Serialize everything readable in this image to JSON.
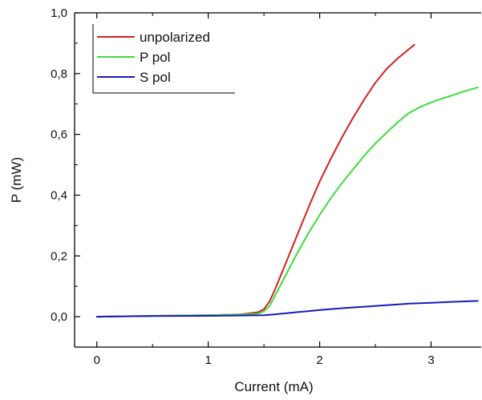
{
  "chart_data": {
    "type": "line",
    "title": "",
    "xlabel": "Current (mA)",
    "ylabel": "P (mW)",
    "xlim": [
      -0.2,
      3.45
    ],
    "ylim": [
      -0.1,
      1.0
    ],
    "x_ticks": [
      0,
      1,
      2,
      3
    ],
    "x_tick_labels": [
      "0",
      "1",
      "2",
      "3"
    ],
    "y_ticks": [
      0.0,
      0.2,
      0.4,
      0.6,
      0.8,
      1.0
    ],
    "y_tick_labels": [
      "0,0",
      "0,2",
      "0,4",
      "0,6",
      "0,8",
      "1,0"
    ],
    "grid": false,
    "legend_position": "top-left",
    "series": [
      {
        "name": "unpolarized",
        "color": "#d42020",
        "x": [
          0,
          0.5,
          1.0,
          1.3,
          1.45,
          1.5,
          1.55,
          1.6,
          1.7,
          1.8,
          1.9,
          2.0,
          2.1,
          2.2,
          2.3,
          2.4,
          2.5,
          2.6,
          2.7,
          2.8,
          2.85
        ],
        "y": [
          0.0,
          0.003,
          0.005,
          0.008,
          0.015,
          0.025,
          0.05,
          0.09,
          0.18,
          0.27,
          0.36,
          0.445,
          0.52,
          0.59,
          0.655,
          0.715,
          0.77,
          0.815,
          0.85,
          0.88,
          0.895
        ]
      },
      {
        "name": "P pol",
        "color": "#3ddc3d",
        "x": [
          0,
          0.5,
          1.0,
          1.3,
          1.45,
          1.5,
          1.55,
          1.6,
          1.7,
          1.8,
          1.9,
          2.0,
          2.1,
          2.2,
          2.3,
          2.4,
          2.5,
          2.6,
          2.7,
          2.8,
          2.9,
          3.0,
          3.1,
          3.2,
          3.3,
          3.42
        ],
        "y": [
          0.0,
          0.003,
          0.005,
          0.007,
          0.01,
          0.018,
          0.035,
          0.07,
          0.14,
          0.21,
          0.275,
          0.335,
          0.39,
          0.44,
          0.485,
          0.53,
          0.57,
          0.605,
          0.64,
          0.67,
          0.69,
          0.705,
          0.718,
          0.73,
          0.742,
          0.755
        ]
      },
      {
        "name": "S pol",
        "color": "#1a1ab8",
        "x": [
          0,
          0.5,
          1.0,
          1.5,
          1.6,
          1.8,
          2.0,
          2.2,
          2.4,
          2.6,
          2.8,
          3.0,
          3.2,
          3.42
        ],
        "y": [
          0.0,
          0.002,
          0.003,
          0.005,
          0.008,
          0.015,
          0.022,
          0.028,
          0.033,
          0.038,
          0.043,
          0.046,
          0.049,
          0.052
        ]
      }
    ]
  }
}
